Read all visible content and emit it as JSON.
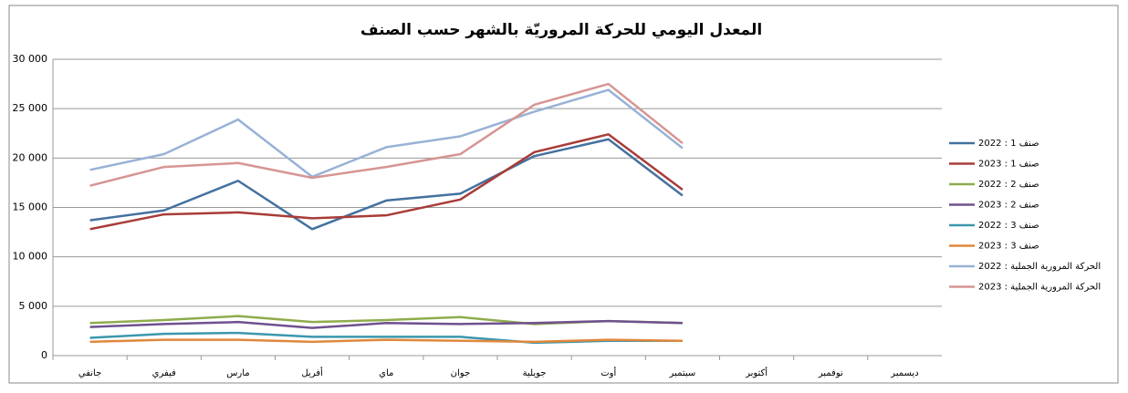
{
  "chart_data": {
    "type": "line",
    "title": "المعدل اليومي للحركة المروريّة بالشهر حسب الصنف",
    "categories": [
      "جانفي",
      "فيفري",
      "مارس",
      "أفريل",
      "ماي",
      "جوان",
      "جويلية",
      "أوت",
      "سبتمبر",
      "أكتوبر",
      "نوفمبر",
      "ديسمبر"
    ],
    "series": [
      {
        "name": "صنف 1 : 2022",
        "color": "#44719f",
        "values": [
          13700,
          14700,
          17700,
          12800,
          15700,
          16400,
          20200,
          21900,
          16200,
          null,
          null,
          null
        ]
      },
      {
        "name": "صنف 1 : 2023",
        "color": "#a83c38",
        "values": [
          12800,
          14300,
          14500,
          13900,
          14200,
          15800,
          20600,
          22400,
          16800,
          null,
          null,
          null
        ]
      },
      {
        "name": "صنف 2 : 2022",
        "color": "#8eac4c",
        "values": [
          3300,
          3600,
          4000,
          3400,
          3600,
          3900,
          3200,
          3500,
          3300,
          null,
          null,
          null
        ]
      },
      {
        "name": "صنف 2 : 2023",
        "color": "#6f518e",
        "values": [
          2900,
          3200,
          3400,
          2800,
          3300,
          3200,
          3300,
          3500,
          3300,
          null,
          null,
          null
        ]
      },
      {
        "name": "صنف 3 : 2022",
        "color": "#3b97ad",
        "values": [
          1800,
          2200,
          2300,
          1900,
          1900,
          1900,
          1300,
          1500,
          1500,
          null,
          null,
          null
        ]
      },
      {
        "name": "صنف 3 : 2023",
        "color": "#e0883c",
        "values": [
          1400,
          1600,
          1600,
          1400,
          1600,
          1500,
          1400,
          1600,
          1500,
          null,
          null,
          null
        ]
      },
      {
        "name": "الحركة المرورية الجملية : 2022",
        "color": "#98b2d6",
        "values": [
          18800,
          20400,
          23900,
          18100,
          21100,
          22200,
          24700,
          26900,
          21000,
          null,
          null,
          null
        ]
      },
      {
        "name": "الحركة المرورية الجملية : 2023",
        "color": "#d69593",
        "values": [
          17200,
          19100,
          19500,
          18000,
          19100,
          20400,
          25400,
          27500,
          21500,
          null,
          null,
          null
        ]
      }
    ],
    "ylim": [
      0,
      30000
    ],
    "yticks": [
      0,
      {
        "value": 5000,
        "label": "5 000"
      },
      {
        "value": 10000,
        "label": "10 000"
      },
      {
        "value": 15000,
        "label": "15 000"
      },
      {
        "value": 20000,
        "label": "20 000"
      },
      {
        "value": 25000,
        "label": "25 000"
      },
      {
        "value": 30000,
        "label": "30 000"
      }
    ],
    "grid": true,
    "legend": "right"
  }
}
